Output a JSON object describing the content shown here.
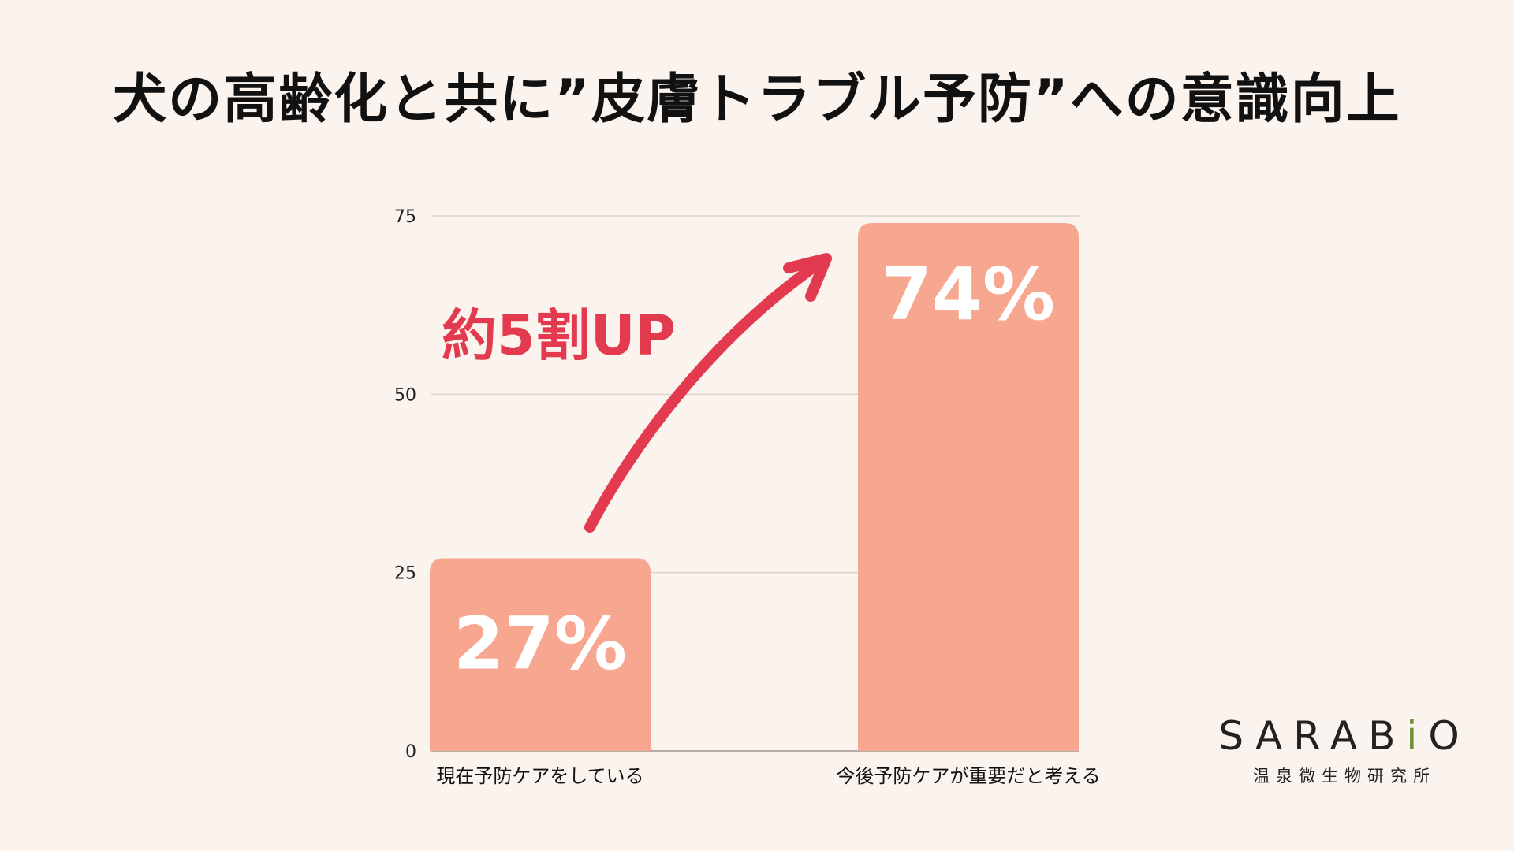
{
  "chart_data": {
    "type": "bar",
    "title": "犬の高齢化と共に”皮膚トラブル予防”への意識向上",
    "categories": [
      "現在予防ケアをしている",
      "今後予防ケアが重要だと考える"
    ],
    "values": [
      27,
      74
    ],
    "data_labels": [
      "27%",
      "74%"
    ],
    "yticks": [
      "0",
      "25",
      "50",
      "75"
    ],
    "ylim": [
      0,
      75
    ],
    "grid": true,
    "bar_color": "#f7a68f",
    "annotation": {
      "text": "約5割UP",
      "color": "#e43a4f"
    }
  },
  "logo": {
    "name_before": "SARAB",
    "name_accent": "i",
    "name_after": "O",
    "subtitle": "温泉微生物研究所",
    "accent_color": "#6e8f3a"
  }
}
